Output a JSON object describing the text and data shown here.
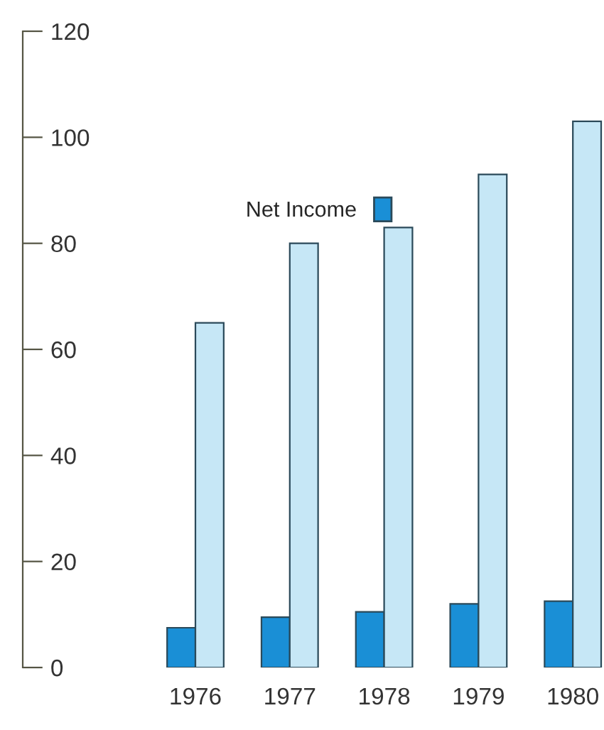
{
  "chart_data": {
    "type": "bar",
    "categories": [
      "1976",
      "1977",
      "1978",
      "1979",
      "1980"
    ],
    "series": [
      {
        "name": "Net Income",
        "color": "#1a8fd6",
        "values": [
          7.5,
          9.5,
          10.5,
          12,
          12.5
        ]
      },
      {
        "color": "#c6e7f6",
        "values": [
          65,
          80,
          83,
          93,
          103
        ]
      }
    ],
    "ylim": [
      0,
      120
    ],
    "yticks": [
      0,
      20,
      40,
      60,
      80,
      100,
      120
    ],
    "legend": "left",
    "grid": false
  }
}
